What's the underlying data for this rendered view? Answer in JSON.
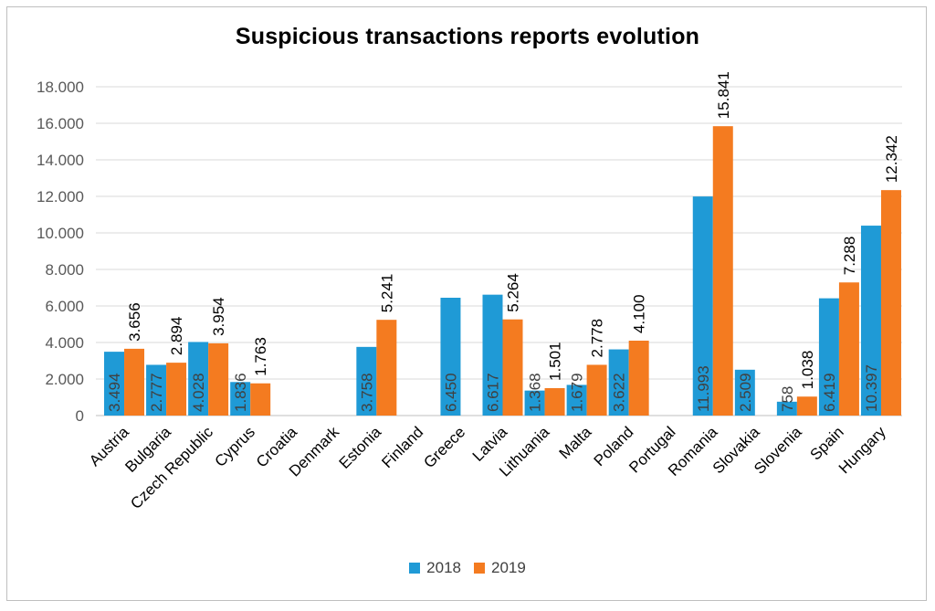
{
  "chart_data": {
    "type": "bar",
    "title": "Suspicious transactions reports evolution",
    "xlabel": "",
    "ylabel": "",
    "ylim": [
      0,
      18000
    ],
    "yticks": [
      0,
      2000,
      4000,
      6000,
      8000,
      10000,
      12000,
      14000,
      16000,
      18000
    ],
    "ytick_labels": [
      "0",
      "2.000",
      "4.000",
      "6.000",
      "8.000",
      "10.000",
      "12.000",
      "14.000",
      "16.000",
      "18.000"
    ],
    "grid": true,
    "legend_position": "bottom",
    "categories": [
      "Austria",
      "Bulgaria",
      "Czech Republic",
      "Cyprus",
      "Croatia",
      "Denmark",
      "Estonia",
      "Finland",
      "Greece",
      "Latvia",
      "Lithuania",
      "Malta",
      "Poland",
      "Portugal",
      "Romania",
      "Slovakia",
      "Slovenia",
      "Spain",
      "Hungary"
    ],
    "series": [
      {
        "name": "2018",
        "color": "#1f9ad6",
        "values": [
          3494,
          2777,
          4028,
          1836,
          null,
          null,
          3758,
          null,
          6450,
          6617,
          1368,
          1679,
          3622,
          null,
          11993,
          2509,
          758,
          6419,
          10397
        ],
        "labels": [
          "3.494",
          "2.777",
          "4.028",
          "1.836",
          "",
          "",
          "3.758",
          "",
          "6.450",
          "6.617",
          "1.368",
          "1.679",
          "3.622",
          "",
          "11.993",
          "2.509",
          "758",
          "6.419",
          "10.397"
        ]
      },
      {
        "name": "2019",
        "color": "#f47b20",
        "values": [
          3656,
          2894,
          3954,
          1763,
          null,
          null,
          5241,
          null,
          null,
          5264,
          1501,
          2778,
          4100,
          null,
          15841,
          null,
          1038,
          7288,
          12342
        ],
        "labels": [
          "3.656",
          "2.894",
          "3.954",
          "1.763",
          "",
          "",
          "5.241",
          "",
          "",
          "5.264",
          "1.501",
          "2.778",
          "4.100",
          "",
          "15.841",
          "",
          "1.038",
          "7.288",
          "12.342"
        ]
      }
    ]
  }
}
